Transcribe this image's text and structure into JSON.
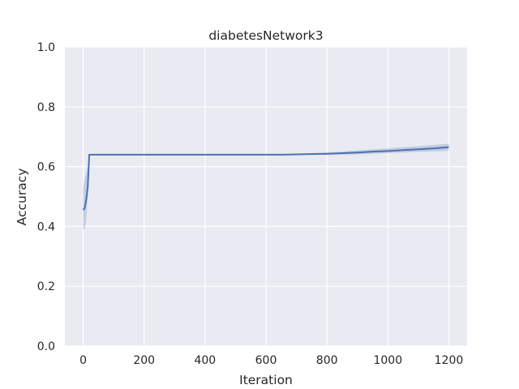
{
  "chart_data": {
    "type": "line",
    "title": "diabetesNetwork3",
    "xlabel": "Iteration",
    "ylabel": "Accuracy",
    "xlim": [
      -60,
      1260
    ],
    "ylim": [
      0.0,
      1.0
    ],
    "xticks": [
      "0",
      "200",
      "400",
      "600",
      "800",
      "1000",
      "1200"
    ],
    "xtick_values": [
      0,
      200,
      400,
      600,
      800,
      1000,
      1200
    ],
    "yticks": [
      "0.0",
      "0.2",
      "0.4",
      "0.6",
      "0.8",
      "1.0"
    ],
    "ytick_values": [
      0.0,
      0.2,
      0.4,
      0.6,
      0.8,
      1.0
    ],
    "grid": true,
    "background": "#eaeaf2",
    "line_color": "#4c72b0",
    "band_color": "#4c72b0",
    "series": [
      {
        "x": [
          0,
          5,
          10,
          15,
          20,
          50,
          100,
          200,
          300,
          400,
          500,
          600,
          650,
          700,
          750,
          800,
          850,
          900,
          950,
          1000,
          1050,
          1100,
          1150,
          1200
        ],
        "y": [
          0.455,
          0.462,
          0.49,
          0.53,
          0.64,
          0.64,
          0.64,
          0.64,
          0.64,
          0.64,
          0.64,
          0.64,
          0.64,
          0.641,
          0.642,
          0.643,
          0.645,
          0.647,
          0.65,
          0.652,
          0.655,
          0.658,
          0.661,
          0.665
        ],
        "lower": [
          0.39,
          0.39,
          0.42,
          0.5,
          0.64,
          0.64,
          0.64,
          0.64,
          0.64,
          0.64,
          0.64,
          0.64,
          0.639,
          0.639,
          0.64,
          0.64,
          0.64,
          0.641,
          0.643,
          0.645,
          0.647,
          0.649,
          0.651,
          0.653
        ],
        "upper": [
          0.53,
          0.56,
          0.58,
          0.6,
          0.64,
          0.64,
          0.64,
          0.64,
          0.64,
          0.64,
          0.64,
          0.64,
          0.641,
          0.643,
          0.645,
          0.647,
          0.65,
          0.654,
          0.658,
          0.661,
          0.665,
          0.668,
          0.672,
          0.677
        ]
      }
    ]
  }
}
